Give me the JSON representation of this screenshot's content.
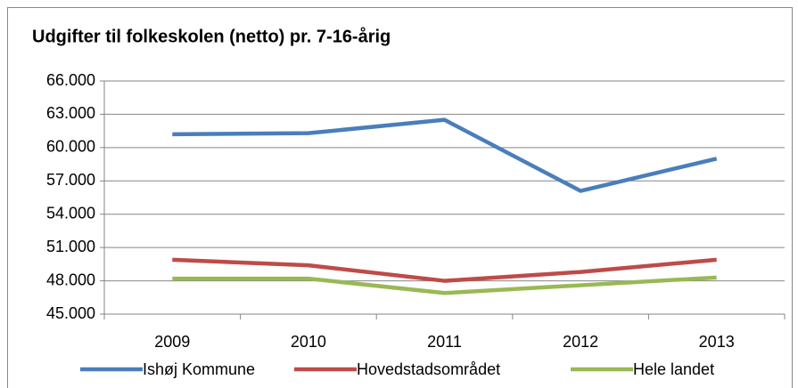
{
  "chart_data": {
    "type": "line",
    "title": "Udgifter til folkeskolen (netto) pr. 7-16-årig",
    "categories": [
      "2009",
      "2010",
      "2011",
      "2012",
      "2013"
    ],
    "series": [
      {
        "name": "Ishøj Kommune",
        "color": "#4a7ebb",
        "values": [
          61200,
          61300,
          62500,
          56100,
          59000
        ]
      },
      {
        "name": "Hovedstadsområdet",
        "color": "#be4b48",
        "values": [
          49900,
          49400,
          48000,
          48800,
          49900
        ]
      },
      {
        "name": "Hele landet",
        "color": "#98b954",
        "values": [
          48200,
          48200,
          46900,
          47600,
          48300
        ]
      }
    ],
    "ylim": [
      45000,
      66000
    ],
    "yticks": [
      {
        "value": 45000,
        "label": "45.000"
      },
      {
        "value": 48000,
        "label": "48.000"
      },
      {
        "value": 51000,
        "label": "51.000"
      },
      {
        "value": 54000,
        "label": "54.000"
      },
      {
        "value": 57000,
        "label": "57.000"
      },
      {
        "value": 60000,
        "label": "60.000"
      },
      {
        "value": 63000,
        "label": "63.000"
      },
      {
        "value": 66000,
        "label": "66.000"
      }
    ],
    "grid": true,
    "legend": "bottom"
  }
}
